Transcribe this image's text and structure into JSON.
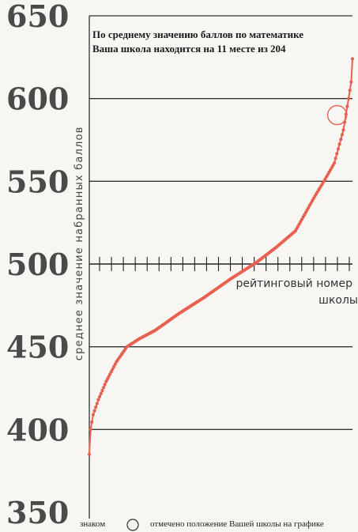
{
  "chart_data": {
    "type": "scatter",
    "title_lines": [
      "По среднему значению баллов по математике",
      "Ваша школа находится на  11 месте из 204"
    ],
    "ylabel": "среднее значение набранных баллов",
    "xlabel_lines": [
      "рейтинговый номер",
      "школы"
    ],
    "yticks": [
      "350",
      "400",
      "450",
      "500",
      "550",
      "600",
      "650"
    ],
    "ylim": [
      350,
      650
    ],
    "xlim": [
      1,
      204
    ],
    "num_schools": 204,
    "highlighted_rank": 11,
    "highlighted_value": 590,
    "series_color": "#e8604f",
    "highlight_color": "#e8604f",
    "x_axis_at": 500,
    "x_tick_count": 22,
    "gridlines": [
      400,
      450,
      600,
      550,
      650
    ],
    "curve_knots": [
      [
        1,
        385
      ],
      [
        2,
        400
      ],
      [
        4,
        409
      ],
      [
        8,
        418
      ],
      [
        14,
        429
      ],
      [
        22,
        441
      ],
      [
        30,
        450
      ],
      [
        40,
        455
      ],
      [
        52,
        460
      ],
      [
        70,
        470
      ],
      [
        90,
        480
      ],
      [
        110,
        491
      ],
      [
        130,
        501
      ],
      [
        145,
        510
      ],
      [
        160,
        520
      ],
      [
        175,
        541
      ],
      [
        182,
        550
      ],
      [
        190,
        561
      ],
      [
        197,
        581
      ],
      [
        201,
        600
      ],
      [
        203,
        610
      ],
      [
        204,
        624
      ]
    ],
    "legend": {
      "prefix": "знаком",
      "text": "отмечено положение Вашей школы на графике"
    }
  }
}
